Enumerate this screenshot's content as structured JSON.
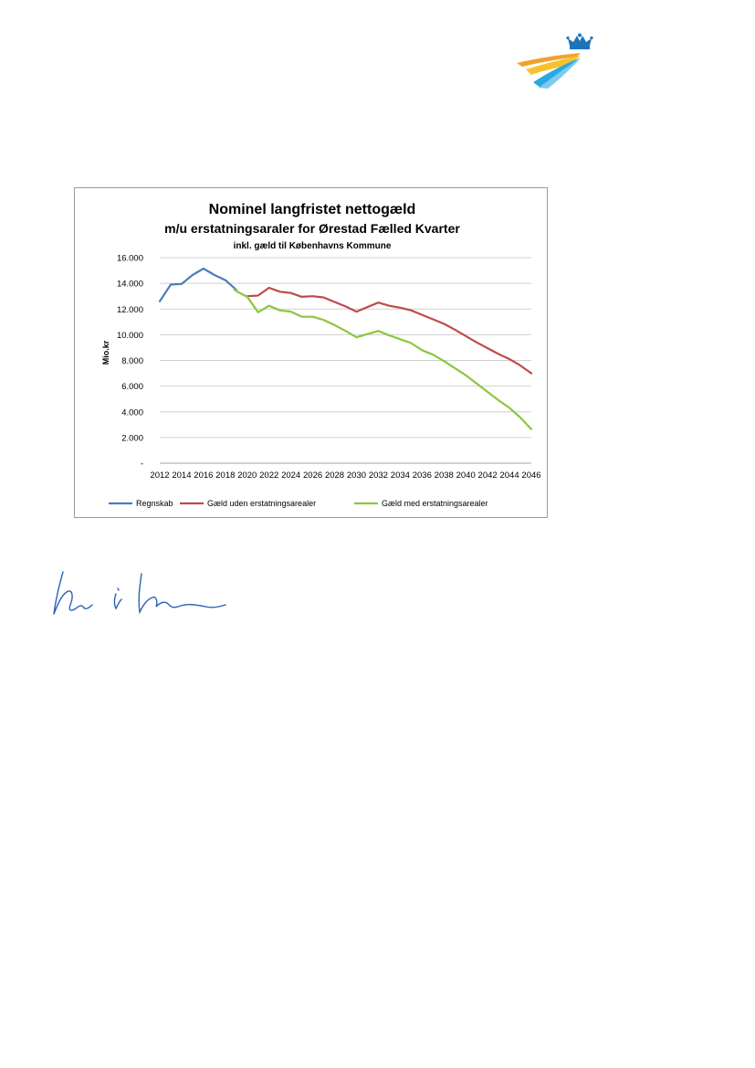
{
  "logo": {
    "icon": "crown-swoosh-logo-icon"
  },
  "signature": {
    "icon": "handwritten-signature-icon"
  },
  "chart_data": {
    "type": "line",
    "title": "Nominel langfristet nettogæld",
    "subtitle": "m/u erstatningsaraler for Ørestad Fælled Kvarter",
    "subtitle2": "inkl. gæld til Københavns Kommune",
    "xlabel": "",
    "ylabel": "Mio.kr",
    "xlim": [
      2012,
      2046
    ],
    "ylim": [
      0,
      16000
    ],
    "x_ticks": [
      "2012",
      "2014",
      "2016",
      "2018",
      "2020",
      "2022",
      "2024",
      "2026",
      "2028",
      "2030",
      "2032",
      "2034",
      "2036",
      "2038",
      "2040",
      "2042",
      "2044",
      "2046"
    ],
    "y_ticks": [
      {
        "value": 0,
        "label": "-"
      },
      {
        "value": 2000,
        "label": "2.000"
      },
      {
        "value": 4000,
        "label": "4.000"
      },
      {
        "value": 6000,
        "label": "6.000"
      },
      {
        "value": 8000,
        "label": "8.000"
      },
      {
        "value": 10000,
        "label": "10.000"
      },
      {
        "value": 12000,
        "label": "12.000"
      },
      {
        "value": 14000,
        "label": "14.000"
      },
      {
        "value": 16000,
        "label": "16.000"
      }
    ],
    "grid": true,
    "legend_position": "bottom",
    "series": [
      {
        "name": "Regnskab",
        "color": "#4a7ebb",
        "x": [
          2012,
          2013,
          2014,
          2015,
          2016,
          2017,
          2018,
          2019
        ],
        "y": [
          12600,
          13900,
          13950,
          14650,
          15150,
          14650,
          14250,
          13500
        ]
      },
      {
        "name": "Gæld uden erstatningsarealer",
        "color": "#be4b48",
        "x": [
          2020,
          2021,
          2022,
          2023,
          2024,
          2025,
          2026,
          2027,
          2028,
          2029,
          2030,
          2031,
          2032,
          2033,
          2034,
          2035,
          2036,
          2037,
          2038,
          2039,
          2040,
          2041,
          2042,
          2043,
          2044,
          2045,
          2046
        ],
        "y": [
          13000,
          13050,
          13650,
          13350,
          13250,
          12950,
          13000,
          12900,
          12550,
          12200,
          11800,
          12150,
          12500,
          12250,
          12100,
          11900,
          11550,
          11200,
          10850,
          10400,
          9900,
          9400,
          8950,
          8500,
          8100,
          7600,
          7000
        ]
      },
      {
        "name": "Gæld med erstatningsarealer",
        "color": "#8cc63f",
        "x": [
          2018.8,
          2019,
          2020,
          2021,
          2022,
          2023,
          2024,
          2025,
          2026,
          2027,
          2028,
          2029,
          2030,
          2031,
          2032,
          2033,
          2034,
          2035,
          2036,
          2037,
          2038,
          2039,
          2040,
          2041,
          2042,
          2043,
          2044,
          2045,
          2046
        ],
        "y": [
          13550,
          13400,
          12950,
          11750,
          12250,
          11900,
          11800,
          11400,
          11400,
          11150,
          10750,
          10300,
          9800,
          10050,
          10300,
          9950,
          9650,
          9350,
          8800,
          8450,
          7950,
          7400,
          6850,
          6200,
          5550,
          4900,
          4300,
          3550,
          2650
        ]
      }
    ]
  }
}
